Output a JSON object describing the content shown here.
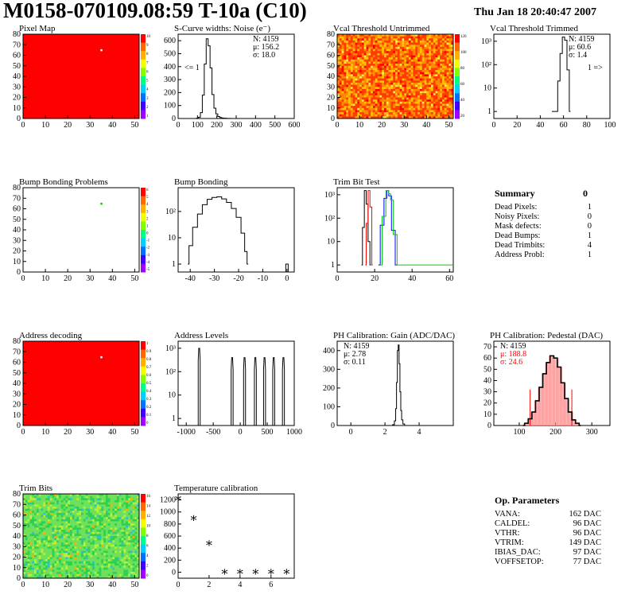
{
  "header": {
    "title": "M0158-070109.08:59 T-10a (C10)",
    "date": "Thu Jan 18 20:40:47 2007"
  },
  "colors": {
    "map_red": "#ff0000",
    "curve": "#000000",
    "trim_red": "#ff0000",
    "trim_blue": "#0000ff",
    "trim_green": "#00cc00",
    "summary_red": "#ff0000"
  },
  "chart_data": [
    {
      "id": "pixel_map",
      "type": "heatmap",
      "title": "Pixel Map",
      "x_ticks": [
        "0",
        "10",
        "20",
        "30",
        "40",
        "50"
      ],
      "y_ticks": [
        "0",
        "10",
        "20",
        "30",
        "40",
        "50",
        "60",
        "70",
        "80"
      ],
      "palette_ticks": [
        "10",
        "9",
        "8",
        "7",
        "6",
        "5",
        "4",
        "3",
        "2",
        "1"
      ],
      "fill": "uniform-red",
      "marked_pixels": [
        [
          35,
          65
        ]
      ]
    },
    {
      "id": "scurve_noise",
      "type": "line",
      "title": "S-Curve widths: Noise (e⁻)",
      "x_ticks": [
        "0",
        "100",
        "200",
        "300",
        "400",
        "500",
        "600"
      ],
      "y_ticks": [
        "0",
        "100",
        "200",
        "300",
        "400",
        "500",
        "600"
      ],
      "xlim": [
        0,
        600
      ],
      "ylim": [
        0,
        650
      ],
      "log_y": false,
      "stats": [
        "N: 4159",
        "μ: 156.2",
        "σ: 18.0"
      ],
      "annotations": [
        "<= 1"
      ],
      "x": [
        90,
        100,
        110,
        120,
        130,
        140,
        150,
        160,
        170,
        180,
        190,
        200,
        210,
        220,
        230,
        240,
        260,
        280
      ],
      "y": [
        0,
        2,
        10,
        45,
        180,
        420,
        615,
        560,
        390,
        185,
        80,
        35,
        15,
        8,
        4,
        2,
        1,
        0
      ]
    },
    {
      "id": "vcal_untrimmed",
      "type": "heatmap",
      "title": "Vcal Threshold Untrimmed",
      "x_ticks": [
        "0",
        "10",
        "20",
        "30",
        "40",
        "50"
      ],
      "y_ticks": [
        "0",
        "10",
        "20",
        "30",
        "40",
        "50",
        "60",
        "70",
        "80"
      ],
      "palette_ticks": [
        "120",
        "100",
        "80",
        "60",
        "40",
        "20"
      ],
      "fill": "noisy-red-orange-yellow"
    },
    {
      "id": "vcal_trimmed",
      "type": "line",
      "title": "Vcal Threshold Trimmed",
      "x_ticks": [
        "0",
        "20",
        "40",
        "60",
        "80",
        "100"
      ],
      "y_ticks": [
        "1",
        "10",
        "10²",
        "10³"
      ],
      "xlim": [
        0,
        100
      ],
      "ylim": [
        0.5,
        2000
      ],
      "log_y": true,
      "stats": [
        "N: 4159",
        "μ: 60.6",
        "σ: 1.4"
      ],
      "annotations": [
        "1 =>"
      ],
      "x": [
        50,
        52,
        54,
        56,
        58,
        60,
        62,
        64,
        66
      ],
      "y": [
        1,
        1,
        1,
        20,
        300,
        1500,
        1100,
        60,
        1
      ]
    },
    {
      "id": "bump_map",
      "type": "heatmap",
      "title": "Bump Bonding Problems",
      "x_ticks": [
        "0",
        "10",
        "20",
        "30",
        "40",
        "50"
      ],
      "y_ticks": [
        "0",
        "10",
        "20",
        "30",
        "40",
        "50",
        "60",
        "70",
        "80"
      ],
      "palette_ticks": [
        "6",
        "5",
        "4",
        "3",
        "2",
        "1",
        "0",
        "-1",
        "-2",
        "-3",
        "-4",
        "-5"
      ],
      "fill": "white",
      "marked_pixels": [
        [
          35,
          65
        ]
      ]
    },
    {
      "id": "bump_bonding",
      "type": "line",
      "title": "Bump Bonding",
      "x_ticks": [
        "-40",
        "-30",
        "-20",
        "-10",
        "0"
      ],
      "y_ticks": [
        "1",
        "10",
        "10²"
      ],
      "xlim": [
        -45,
        3
      ],
      "ylim": [
        0.5,
        800
      ],
      "log_y": true,
      "x": [
        -41,
        -40,
        -38,
        -36,
        -34,
        -32,
        -30,
        -28,
        -26,
        -24,
        -22,
        -20,
        -18,
        -17,
        -16
      ],
      "y": [
        1,
        5,
        25,
        80,
        180,
        290,
        340,
        360,
        300,
        220,
        130,
        60,
        15,
        3,
        1
      ],
      "outlier": [
        0,
        1
      ]
    },
    {
      "id": "trim_bit_test",
      "type": "line",
      "title": "Trim Bit Test",
      "x_ticks": [
        "0",
        "20",
        "40",
        "60"
      ],
      "y_ticks": [
        "1",
        "10",
        "10²",
        "10³"
      ],
      "xlim": [
        0,
        62
      ],
      "ylim": [
        0.5,
        2000
      ],
      "log_y": true,
      "series": [
        {
          "color": "trim_black",
          "x": [
            13,
            14,
            15,
            16,
            17,
            18
          ],
          "y": [
            1,
            40,
            1500,
            400,
            10,
            1
          ]
        },
        {
          "color": "trim_red",
          "x": [
            15,
            16,
            17,
            18,
            19
          ],
          "y": [
            1,
            60,
            1500,
            300,
            1
          ]
        },
        {
          "color": "trim_blue",
          "x": [
            22,
            24,
            26,
            27,
            28,
            30,
            32
          ],
          "y": [
            1,
            50,
            700,
            1500,
            900,
            30,
            1
          ]
        },
        {
          "color": "trim_green",
          "x": [
            23,
            25,
            27,
            28,
            29,
            31,
            33
          ],
          "y": [
            1,
            120,
            1500,
            1100,
            600,
            20,
            1
          ]
        }
      ]
    },
    {
      "id": "address_map",
      "type": "heatmap",
      "title": "Address decoding",
      "x_ticks": [
        "0",
        "10",
        "20",
        "30",
        "40",
        "50"
      ],
      "y_ticks": [
        "0",
        "10",
        "20",
        "30",
        "40",
        "50",
        "60",
        "70",
        "80"
      ],
      "palette_ticks": [
        "1",
        "0.9",
        "0.8",
        "0.7",
        "0.6",
        "0.5",
        "0.4",
        "0.3",
        "0.2",
        "0.1",
        "0"
      ],
      "fill": "uniform-red",
      "marked_pixels": [
        [
          35,
          65
        ]
      ]
    },
    {
      "id": "address_levels",
      "type": "line",
      "title": "Address Levels",
      "x_ticks": [
        "-1000",
        "-500",
        "0",
        "500",
        "1000"
      ],
      "y_ticks": [
        "1",
        "10",
        "10²",
        "10³"
      ],
      "xlim": [
        -1150,
        1000
      ],
      "ylim": [
        0.5,
        2000
      ],
      "log_y": true,
      "peaks_x": [
        -760,
        -150,
        80,
        280,
        450,
        620,
        800
      ],
      "peaks_y": [
        1000,
        400,
        400,
        400,
        400,
        400,
        400
      ]
    },
    {
      "id": "ph_gain",
      "type": "line",
      "title": "PH Calibration: Gain (ADC/DAC)",
      "x_ticks": [
        "0",
        "2",
        "4"
      ],
      "y_ticks": [
        "0",
        "100",
        "200",
        "300",
        "400"
      ],
      "xlim": [
        -0.8,
        6
      ],
      "ylim": [
        0,
        450
      ],
      "log_y": false,
      "stats": [
        "N: 4159",
        "μ: 2.78",
        "σ: 0.11"
      ],
      "x": [
        2.4,
        2.5,
        2.6,
        2.65,
        2.7,
        2.75,
        2.8,
        2.85,
        2.9,
        2.95,
        3.0,
        3.1,
        3.2
      ],
      "y": [
        0,
        5,
        25,
        90,
        230,
        400,
        430,
        330,
        180,
        80,
        30,
        8,
        0
      ]
    },
    {
      "id": "ph_pedestal",
      "type": "line",
      "title": "PH Calibration: Pedestal (DAC)",
      "x_ticks": [
        "100",
        "200",
        "300"
      ],
      "y_ticks": [
        "0",
        "10",
        "20",
        "30",
        "40",
        "50",
        "60",
        "70"
      ],
      "xlim": [
        30,
        350
      ],
      "ylim": [
        0,
        75
      ],
      "log_y": false,
      "stats": [
        "N: 4159",
        "μ: 188.8",
        "σ: 24.6"
      ],
      "stats_red_from": 1,
      "x": [
        110,
        120,
        130,
        140,
        150,
        160,
        170,
        180,
        190,
        200,
        210,
        220,
        230,
        240,
        250,
        260,
        270
      ],
      "y": [
        0,
        2,
        6,
        12,
        22,
        34,
        46,
        56,
        62,
        60,
        52,
        38,
        24,
        12,
        5,
        2,
        0
      ],
      "cut_lines_x": [
        130,
        245
      ],
      "cut_height": 32
    },
    {
      "id": "trim_bits",
      "type": "heatmap",
      "title": "Trim Bits",
      "x_ticks": [
        "0",
        "10",
        "20",
        "30",
        "40",
        "50"
      ],
      "y_ticks": [
        "0",
        "10",
        "20",
        "30",
        "40",
        "50",
        "60",
        "70",
        "80"
      ],
      "palette_ticks": [
        "16",
        "14",
        "12",
        "10",
        "8",
        "6",
        "4",
        "2",
        "0"
      ],
      "fill": "noisy-green"
    },
    {
      "id": "temperature_calibration",
      "type": "scatter",
      "title": "Temperature calibration",
      "x_ticks": [
        "0",
        "2",
        "4",
        "6"
      ],
      "y_ticks": [
        "0",
        "200",
        "400",
        "600",
        "800",
        "1000",
        "1200"
      ],
      "xlim": [
        0,
        7.5
      ],
      "ylim": [
        -100,
        1300
      ],
      "log_y": false,
      "x": [
        0,
        1,
        2,
        3,
        4,
        5,
        6,
        7
      ],
      "y": [
        1230,
        900,
        480,
        5,
        5,
        5,
        5,
        5
      ]
    }
  ],
  "summary": {
    "title": "Summary",
    "total": "0",
    "rows": [
      {
        "label": "Dead Pixels:",
        "value": "1"
      },
      {
        "label": "Noisy Pixels:",
        "value": "0"
      },
      {
        "label": "Mask defects:",
        "value": "0"
      },
      {
        "label": "Dead Bumps:",
        "value": "1"
      },
      {
        "label": "Dead Trimbits:",
        "value": "4"
      },
      {
        "label": "Address Probl:",
        "value": "1"
      }
    ]
  },
  "op_params": {
    "title": "Op. Parameters",
    "rows": [
      {
        "label": "VANA:",
        "value": "162 DAC"
      },
      {
        "label": "CALDEL:",
        "value": "96 DAC"
      },
      {
        "label": "VTHR:",
        "value": "96 DAC"
      },
      {
        "label": "VTRIM:",
        "value": "149 DAC"
      },
      {
        "label": "IBIAS_DAC:",
        "value": "97 DAC"
      },
      {
        "label": "VOFFSETOP:",
        "value": "77 DAC"
      }
    ]
  }
}
